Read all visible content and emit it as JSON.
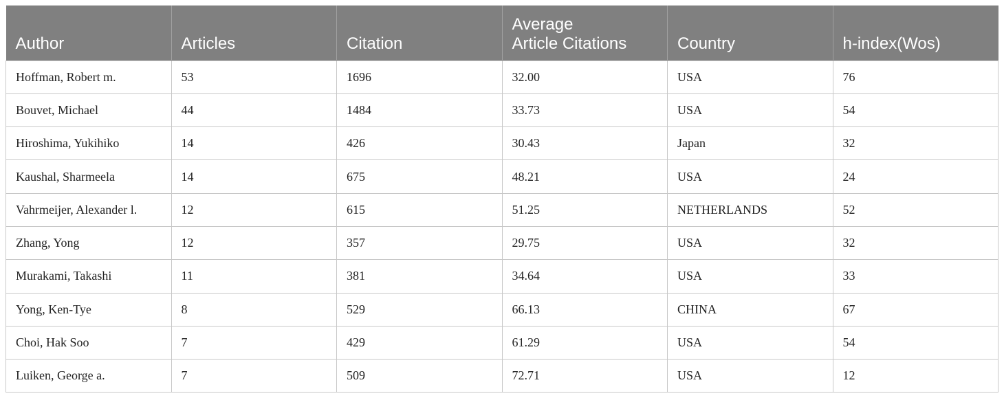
{
  "table": {
    "headers": [
      [
        "Author"
      ],
      [
        "Articles"
      ],
      [
        "Citation"
      ],
      [
        "Average",
        "Article Citations"
      ],
      [
        "Country"
      ],
      [
        "h-index(Wos)"
      ]
    ],
    "rows": [
      [
        "Hoffman, Robert m.",
        "53",
        "1696",
        "32.00",
        "USA",
        "76"
      ],
      [
        "Bouvet, Michael",
        "44",
        "1484",
        "33.73",
        "USA",
        "54"
      ],
      [
        "Hiroshima, Yukihiko",
        "14",
        "426",
        "30.43",
        "Japan",
        "32"
      ],
      [
        "Kaushal, Sharmeela",
        "14",
        "675",
        "48.21",
        "USA",
        "24"
      ],
      [
        "Vahrmeijer, Alexander l.",
        "12",
        "615",
        "51.25",
        "NETHERLANDS",
        "52"
      ],
      [
        "Zhang, Yong",
        "12",
        "357",
        "29.75",
        "USA",
        "32"
      ],
      [
        "Murakami, Takashi",
        "11",
        "381",
        "34.64",
        "USA",
        "33"
      ],
      [
        "Yong, Ken-Tye",
        "8",
        "529",
        "66.13",
        "CHINA",
        "67"
      ],
      [
        "Choi, Hak Soo",
        "7",
        "429",
        "61.29",
        "USA",
        "54"
      ],
      [
        "Luiken, George a.",
        "7",
        "509",
        "72.71",
        "USA",
        "12"
      ]
    ]
  }
}
